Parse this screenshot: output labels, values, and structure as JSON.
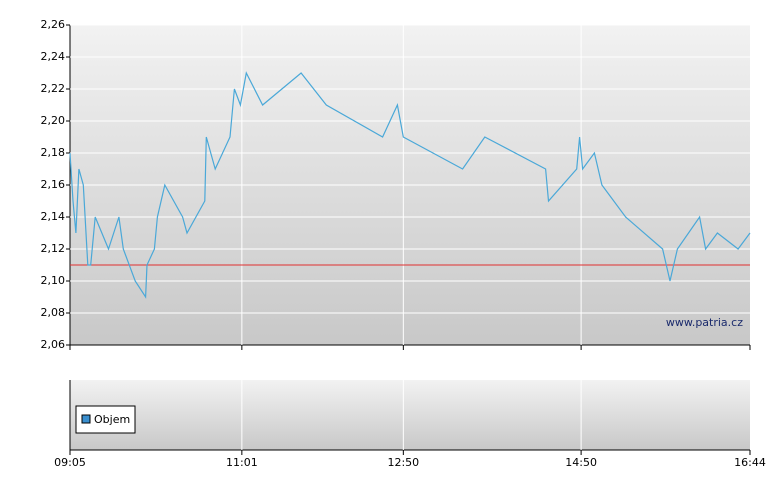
{
  "chart_data": {
    "type": "line",
    "x": [
      "09:05",
      "09:07",
      "09:09",
      "09:11",
      "09:14",
      "09:17",
      "09:19",
      "09:22",
      "09:31",
      "09:38",
      "09:41",
      "09:49",
      "09:56",
      "09:57",
      "10:02",
      "10:04",
      "10:09",
      "10:21",
      "10:24",
      "10:36",
      "10:37",
      "10:43",
      "10:53",
      "10:56",
      "11:00",
      "11:04",
      "11:15",
      "11:41",
      "11:58",
      "12:36",
      "12:46",
      "12:50",
      "13:30",
      "13:45",
      "14:26",
      "14:28",
      "14:47",
      "14:49",
      "14:51",
      "14:59",
      "15:04",
      "15:20",
      "15:45",
      "15:50",
      "15:55",
      "16:10",
      "16:14",
      "16:22",
      "16:36",
      "16:44"
    ],
    "series": [
      {
        "color": "#4aa8d8",
        "values": [
          2.18,
          2.15,
          2.13,
          2.17,
          2.16,
          2.11,
          2.11,
          2.14,
          2.12,
          2.14,
          2.12,
          2.1,
          2.09,
          2.11,
          2.12,
          2.14,
          2.16,
          2.14,
          2.13,
          2.15,
          2.19,
          2.17,
          2.19,
          2.22,
          2.21,
          2.23,
          2.21,
          2.23,
          2.21,
          2.19,
          2.21,
          2.19,
          2.17,
          2.19,
          2.17,
          2.15,
          2.17,
          2.19,
          2.17,
          2.18,
          2.16,
          2.14,
          2.12,
          2.1,
          2.12,
          2.14,
          2.12,
          2.13,
          2.12,
          2.13
        ]
      }
    ],
    "reference_line": {
      "value": 2.11,
      "color": "#e03030"
    },
    "xlim": [
      "09:05",
      "16:44"
    ],
    "xticks": [
      "09:05",
      "11:01",
      "12:50",
      "14:50",
      "16:44"
    ],
    "ylim": [
      2.06,
      2.26
    ],
    "yticks": [
      {
        "value": 2.06,
        "label": "2,06"
      },
      {
        "value": 2.08,
        "label": "2,08"
      },
      {
        "value": 2.1,
        "label": "2,10"
      },
      {
        "value": 2.12,
        "label": "2,12"
      },
      {
        "value": 2.14,
        "label": "2,14"
      },
      {
        "value": 2.16,
        "label": "2,16"
      },
      {
        "value": 2.18,
        "label": "2,18"
      },
      {
        "value": 2.2,
        "label": "2,20"
      },
      {
        "value": 2.22,
        "label": "2,22"
      },
      {
        "value": 2.24,
        "label": "2,24"
      },
      {
        "value": 2.26,
        "label": "2,26"
      }
    ],
    "grid": true,
    "watermark": "www.patria.cz",
    "volume_legend": {
      "name": "Objem",
      "color": "#3a8fcf"
    }
  }
}
